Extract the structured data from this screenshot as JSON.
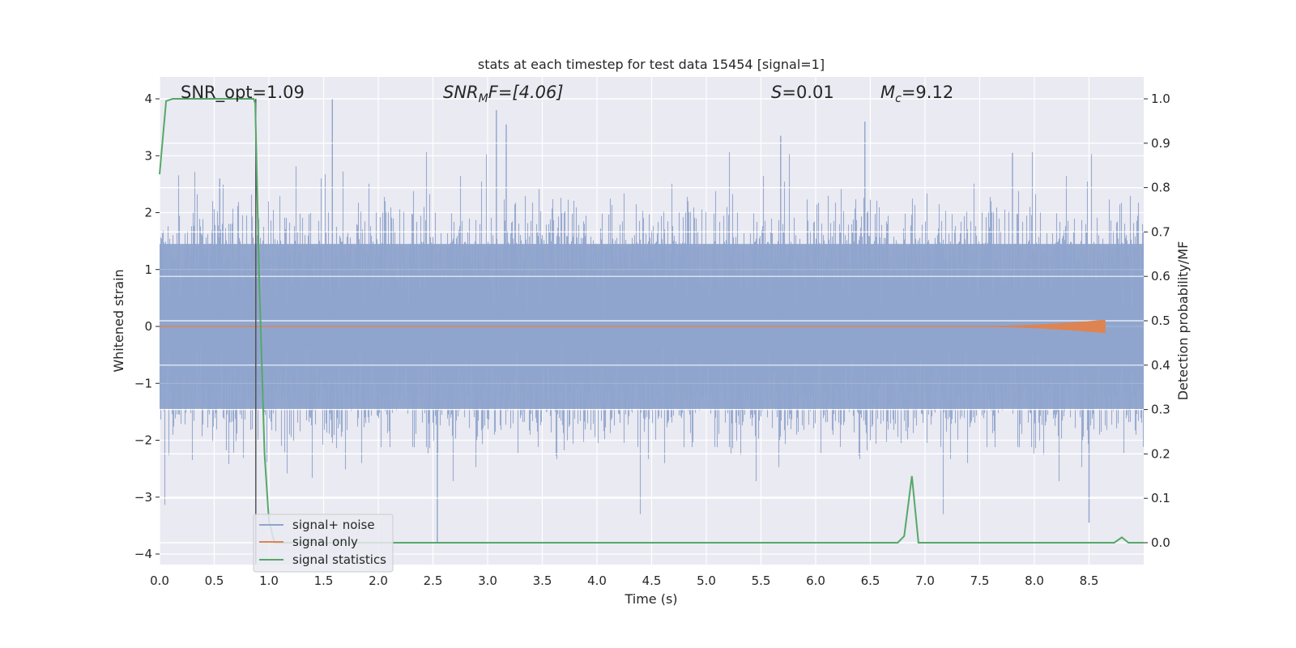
{
  "chart_data": {
    "type": "line",
    "title": "stats at each timestep for test data 15454 [signal=1]",
    "xlabel": "Time (s)",
    "ylabel_left": "Whitened strain",
    "ylabel_right": "Detection probability/MF",
    "xlim": [
      0.0,
      9.0
    ],
    "ylim_left": [
      -4.2,
      4.4
    ],
    "ylim_right": [
      -0.05,
      1.045
    ],
    "x_ticks": [
      "0.0",
      "0.5",
      "1.0",
      "1.5",
      "2.0",
      "2.5",
      "3.0",
      "3.5",
      "4.0",
      "4.5",
      "5.0",
      "5.5",
      "6.0",
      "6.5",
      "7.0",
      "7.5",
      "8.0",
      "8.5"
    ],
    "y_left_ticks": [
      "4",
      "3",
      "2",
      "1",
      "0",
      "−1",
      "−2",
      "−3",
      "−4"
    ],
    "y_right_ticks": [
      "1.0",
      "0.9",
      "0.8",
      "0.7",
      "0.6",
      "0.5",
      "0.4",
      "0.3",
      "0.2",
      "0.1",
      "0.0"
    ],
    "grid": true,
    "legend_position": "lower-left",
    "annotations": {
      "snr_opt": "SNR_opt=1.09",
      "snr_mf_main": "SNR",
      "snr_mf_sub": "M",
      "snr_mf_rest": "F=[4.06]",
      "s_main": "S",
      "s_rest": "=0.01",
      "mc_main": "M",
      "mc_sub": "c",
      "mc_rest": "=9.12"
    },
    "marker_line_x": 0.88,
    "series": [
      {
        "name": "signal+ noise",
        "color": "#8fa4cc",
        "axis": "left",
        "description_values": "white noise, sampling 2048 Hz, envelope roughly ±2.2 with peaks to 4.0",
        "sample_peaks": [
          {
            "x": 0.55,
            "y": 2.6
          },
          {
            "x": 1.58,
            "y": 4.0
          },
          {
            "x": 2.54,
            "y": -3.8
          },
          {
            "x": 3.08,
            "y": 3.8
          },
          {
            "x": 3.17,
            "y": 3.55
          },
          {
            "x": 5.68,
            "y": 3.35
          },
          {
            "x": 6.45,
            "y": 3.6
          },
          {
            "x": 7.8,
            "y": 3.05
          },
          {
            "x": 8.5,
            "y": -3.45
          }
        ]
      },
      {
        "name": "signal only",
        "color": "#dd8452",
        "axis": "left",
        "chirp_end_x": 8.65,
        "chirp_max_amplitude": 0.12
      },
      {
        "name": "signal statistics",
        "color": "#55a868",
        "axis": "right",
        "x": [
          0.0,
          0.06,
          0.12,
          0.4,
          0.6,
          0.86,
          0.875,
          0.91,
          0.96,
          1.0,
          1.05,
          2.0,
          4.0,
          6.0,
          6.75,
          6.81,
          6.88,
          6.94,
          7.0,
          8.0,
          8.73,
          8.8,
          8.86,
          8.92,
          9.0
        ],
        "y": [
          0.83,
          0.995,
          1.0,
          1.0,
          1.0,
          1.0,
          0.99,
          0.6,
          0.2,
          0.05,
          0.0,
          0.0,
          0.0,
          0.0,
          0.0,
          0.015,
          0.15,
          0.0,
          0.0,
          0.0,
          0.0,
          0.012,
          0.0,
          0.0,
          0.0
        ]
      }
    ]
  }
}
